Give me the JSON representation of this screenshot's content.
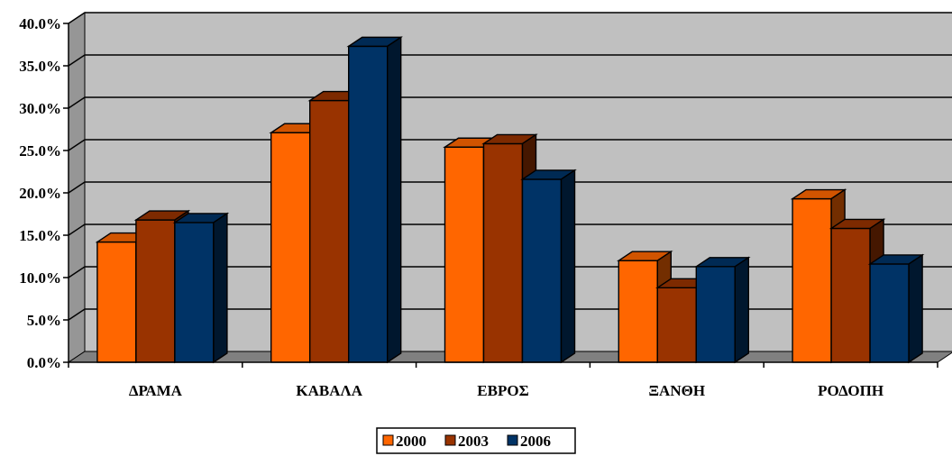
{
  "chart_data": {
    "type": "bar",
    "style": "3d-clustered-column",
    "title": "",
    "xlabel": "",
    "ylabel": "",
    "categories": [
      "ΔΡΑΜΑ",
      "ΚΑΒΑΛΑ",
      "ΕΒΡΟΣ",
      "ΞΑΝΘΗ",
      "ΡΟΔΟΠΗ"
    ],
    "series": [
      {
        "name": "2000",
        "color": "#FF6600",
        "values": [
          14.2,
          27.1,
          25.4,
          12.0,
          19.3
        ]
      },
      {
        "name": "2003",
        "color": "#993300",
        "values": [
          16.8,
          30.9,
          25.8,
          8.8,
          15.8
        ]
      },
      {
        "name": "2006",
        "color": "#003366",
        "values": [
          16.5,
          37.3,
          21.6,
          11.3,
          11.6
        ]
      }
    ],
    "ylim": [
      0,
      40
    ],
    "yticks": [
      "0.0%",
      "5.0%",
      "10.0%",
      "15.0%",
      "20.0%",
      "25.0%",
      "30.0%",
      "35.0%",
      "40.0%"
    ],
    "grid": true,
    "wall_color": "#C0C0C0",
    "legend_position": "bottom"
  }
}
